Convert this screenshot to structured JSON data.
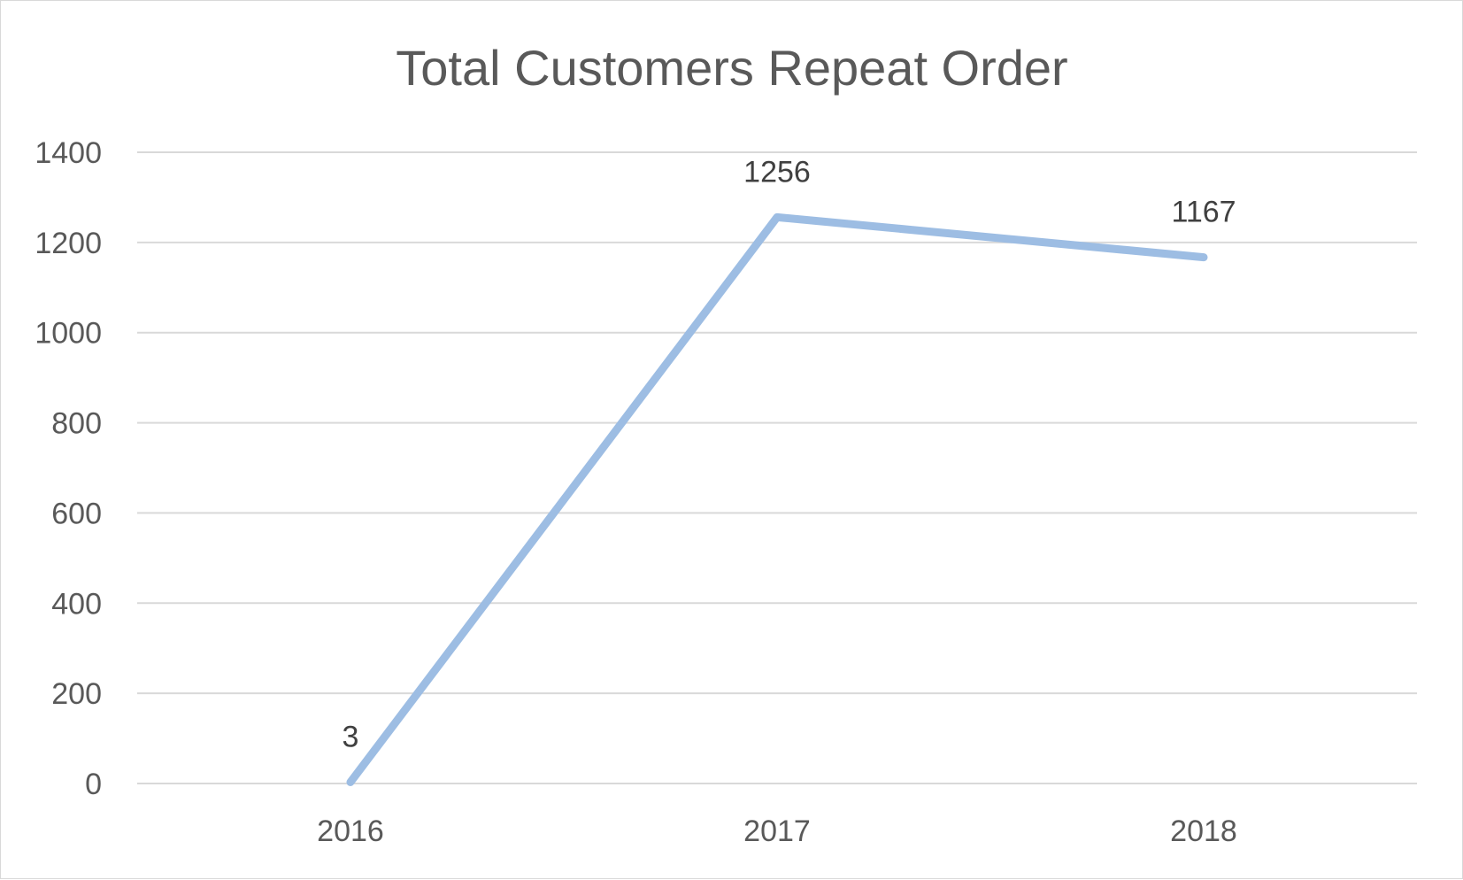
{
  "chart_data": {
    "type": "line",
    "title": "Total Customers Repeat Order",
    "xlabel": "",
    "ylabel": "",
    "categories": [
      "2016",
      "2017",
      "2018"
    ],
    "series": [
      {
        "values": [
          3,
          1256,
          1167
        ],
        "color": "#9dbde3"
      }
    ],
    "ylim": [
      0,
      1400
    ],
    "yticks": [
      0,
      200,
      400,
      600,
      800,
      1000,
      1200,
      1400
    ],
    "grid": true,
    "legend": "none",
    "data_labels": true
  }
}
